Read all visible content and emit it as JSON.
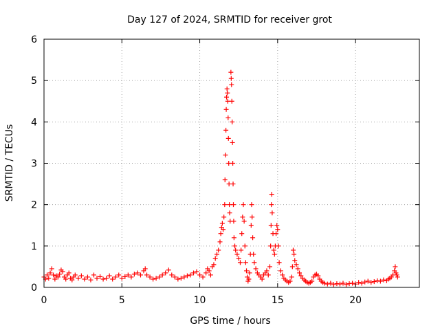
{
  "chart_data": {
    "type": "scatter",
    "title": "Day 127 of 2024, SRMTID for receiver grot",
    "xlabel": "GPS time / hours",
    "ylabel": "SRMTID / TECUs",
    "xlim": [
      0,
      24.1
    ],
    "ylim": [
      0,
      6
    ],
    "xticks": [
      0,
      5,
      10,
      15,
      20
    ],
    "yticks": [
      0,
      1,
      2,
      3,
      4,
      5,
      6
    ],
    "grid": true,
    "marker": "+",
    "color": "#ff0000",
    "series": [
      {
        "name": "SRMTID",
        "points": [
          [
            0.0,
            0.25
          ],
          [
            0.1,
            0.2
          ],
          [
            0.2,
            0.3
          ],
          [
            0.3,
            0.22
          ],
          [
            0.4,
            0.35
          ],
          [
            0.5,
            0.45
          ],
          [
            0.6,
            0.3
          ],
          [
            0.7,
            0.2
          ],
          [
            0.8,
            0.28
          ],
          [
            0.9,
            0.25
          ],
          [
            1.0,
            0.32
          ],
          [
            1.1,
            0.42
          ],
          [
            1.2,
            0.38
          ],
          [
            1.3,
            0.25
          ],
          [
            1.4,
            0.2
          ],
          [
            1.5,
            0.3
          ],
          [
            1.6,
            0.35
          ],
          [
            1.7,
            0.22
          ],
          [
            1.8,
            0.18
          ],
          [
            1.9,
            0.25
          ],
          [
            2.0,
            0.3
          ],
          [
            2.2,
            0.22
          ],
          [
            2.4,
            0.28
          ],
          [
            2.6,
            0.2
          ],
          [
            2.8,
            0.25
          ],
          [
            3.0,
            0.18
          ],
          [
            3.2,
            0.3
          ],
          [
            3.4,
            0.22
          ],
          [
            3.6,
            0.26
          ],
          [
            3.8,
            0.2
          ],
          [
            4.0,
            0.22
          ],
          [
            4.2,
            0.28
          ],
          [
            4.4,
            0.2
          ],
          [
            4.6,
            0.25
          ],
          [
            4.8,
            0.3
          ],
          [
            5.0,
            0.22
          ],
          [
            5.2,
            0.26
          ],
          [
            5.4,
            0.3
          ],
          [
            5.6,
            0.25
          ],
          [
            5.8,
            0.32
          ],
          [
            6.0,
            0.35
          ],
          [
            6.2,
            0.3
          ],
          [
            6.4,
            0.4
          ],
          [
            6.5,
            0.45
          ],
          [
            6.6,
            0.3
          ],
          [
            6.8,
            0.25
          ],
          [
            7.0,
            0.2
          ],
          [
            7.2,
            0.22
          ],
          [
            7.4,
            0.25
          ],
          [
            7.6,
            0.3
          ],
          [
            7.8,
            0.35
          ],
          [
            8.0,
            0.42
          ],
          [
            8.2,
            0.3
          ],
          [
            8.4,
            0.25
          ],
          [
            8.6,
            0.2
          ],
          [
            8.8,
            0.22
          ],
          [
            9.0,
            0.25
          ],
          [
            9.2,
            0.28
          ],
          [
            9.4,
            0.3
          ],
          [
            9.6,
            0.35
          ],
          [
            9.8,
            0.38
          ],
          [
            10.0,
            0.3
          ],
          [
            10.2,
            0.25
          ],
          [
            10.4,
            0.35
          ],
          [
            10.5,
            0.45
          ],
          [
            10.6,
            0.4
          ],
          [
            10.7,
            0.3
          ],
          [
            10.8,
            0.5
          ],
          [
            10.9,
            0.55
          ],
          [
            11.0,
            0.7
          ],
          [
            11.1,
            0.8
          ],
          [
            11.2,
            0.9
          ],
          [
            11.3,
            1.1
          ],
          [
            11.35,
            1.3
          ],
          [
            11.4,
            1.45
          ],
          [
            11.45,
            1.55
          ],
          [
            11.5,
            1.4
          ],
          [
            11.55,
            1.7
          ],
          [
            11.6,
            2.0
          ],
          [
            11.62,
            2.6
          ],
          [
            11.65,
            3.2
          ],
          [
            11.68,
            3.8
          ],
          [
            11.7,
            4.3
          ],
          [
            11.72,
            4.6
          ],
          [
            11.75,
            4.8
          ],
          [
            11.78,
            4.7
          ],
          [
            11.8,
            4.5
          ],
          [
            11.82,
            4.1
          ],
          [
            11.84,
            3.6
          ],
          [
            11.86,
            3.0
          ],
          [
            11.88,
            2.5
          ],
          [
            11.9,
            2.0
          ],
          [
            11.92,
            1.8
          ],
          [
            11.95,
            1.6
          ],
          [
            12.0,
            5.2
          ],
          [
            12.02,
            5.05
          ],
          [
            12.04,
            4.9
          ],
          [
            12.06,
            4.5
          ],
          [
            12.08,
            4.0
          ],
          [
            12.1,
            3.5
          ],
          [
            12.12,
            3.0
          ],
          [
            12.14,
            2.5
          ],
          [
            12.16,
            2.0
          ],
          [
            12.18,
            1.6
          ],
          [
            12.2,
            1.2
          ],
          [
            12.25,
            1.0
          ],
          [
            12.3,
            0.9
          ],
          [
            12.4,
            0.8
          ],
          [
            12.5,
            0.7
          ],
          [
            12.6,
            0.6
          ],
          [
            12.65,
            0.9
          ],
          [
            12.7,
            1.3
          ],
          [
            12.75,
            1.7
          ],
          [
            12.8,
            2.0
          ],
          [
            12.85,
            1.6
          ],
          [
            12.9,
            1.0
          ],
          [
            12.95,
            0.6
          ],
          [
            13.0,
            0.4
          ],
          [
            13.05,
            0.25
          ],
          [
            13.1,
            0.15
          ],
          [
            13.15,
            0.2
          ],
          [
            13.2,
            0.35
          ],
          [
            13.25,
            0.8
          ],
          [
            13.3,
            1.5
          ],
          [
            13.33,
            2.0
          ],
          [
            13.36,
            1.7
          ],
          [
            13.4,
            1.2
          ],
          [
            13.45,
            0.8
          ],
          [
            13.5,
            0.6
          ],
          [
            13.6,
            0.45
          ],
          [
            13.7,
            0.35
          ],
          [
            13.8,
            0.3
          ],
          [
            13.9,
            0.25
          ],
          [
            14.0,
            0.2
          ],
          [
            14.1,
            0.3
          ],
          [
            14.2,
            0.35
          ],
          [
            14.3,
            0.4
          ],
          [
            14.4,
            0.3
          ],
          [
            14.5,
            0.5
          ],
          [
            14.55,
            1.0
          ],
          [
            14.58,
            1.5
          ],
          [
            14.6,
            2.0
          ],
          [
            14.62,
            2.25
          ],
          [
            14.65,
            1.8
          ],
          [
            14.7,
            1.3
          ],
          [
            14.75,
            0.9
          ],
          [
            14.8,
            0.8
          ],
          [
            14.85,
            1.0
          ],
          [
            14.9,
            1.3
          ],
          [
            14.95,
            1.5
          ],
          [
            15.0,
            1.4
          ],
          [
            15.05,
            1.0
          ],
          [
            15.1,
            0.6
          ],
          [
            15.2,
            0.4
          ],
          [
            15.3,
            0.3
          ],
          [
            15.4,
            0.22
          ],
          [
            15.5,
            0.18
          ],
          [
            15.6,
            0.15
          ],
          [
            15.7,
            0.12
          ],
          [
            15.8,
            0.15
          ],
          [
            15.9,
            0.25
          ],
          [
            15.95,
            0.5
          ],
          [
            16.0,
            0.9
          ],
          [
            16.05,
            0.8
          ],
          [
            16.1,
            0.65
          ],
          [
            16.2,
            0.55
          ],
          [
            16.3,
            0.45
          ],
          [
            16.4,
            0.35
          ],
          [
            16.5,
            0.28
          ],
          [
            16.6,
            0.22
          ],
          [
            16.7,
            0.18
          ],
          [
            16.8,
            0.15
          ],
          [
            16.9,
            0.12
          ],
          [
            17.0,
            0.1
          ],
          [
            17.1,
            0.12
          ],
          [
            17.2,
            0.15
          ],
          [
            17.3,
            0.25
          ],
          [
            17.4,
            0.3
          ],
          [
            17.5,
            0.32
          ],
          [
            17.6,
            0.28
          ],
          [
            17.7,
            0.2
          ],
          [
            17.8,
            0.15
          ],
          [
            17.9,
            0.12
          ],
          [
            18.0,
            0.1
          ],
          [
            18.2,
            0.08
          ],
          [
            18.4,
            0.1
          ],
          [
            18.6,
            0.07
          ],
          [
            18.8,
            0.09
          ],
          [
            19.0,
            0.08
          ],
          [
            19.2,
            0.1
          ],
          [
            19.4,
            0.07
          ],
          [
            19.6,
            0.09
          ],
          [
            19.8,
            0.1
          ],
          [
            20.0,
            0.08
          ],
          [
            20.2,
            0.12
          ],
          [
            20.4,
            0.1
          ],
          [
            20.6,
            0.13
          ],
          [
            20.8,
            0.15
          ],
          [
            21.0,
            0.12
          ],
          [
            21.2,
            0.14
          ],
          [
            21.4,
            0.16
          ],
          [
            21.6,
            0.15
          ],
          [
            21.8,
            0.18
          ],
          [
            22.0,
            0.16
          ],
          [
            22.1,
            0.2
          ],
          [
            22.2,
            0.22
          ],
          [
            22.3,
            0.25
          ],
          [
            22.4,
            0.3
          ],
          [
            22.5,
            0.4
          ],
          [
            22.55,
            0.5
          ],
          [
            22.6,
            0.35
          ],
          [
            22.65,
            0.3
          ],
          [
            22.7,
            0.25
          ]
        ]
      }
    ]
  }
}
